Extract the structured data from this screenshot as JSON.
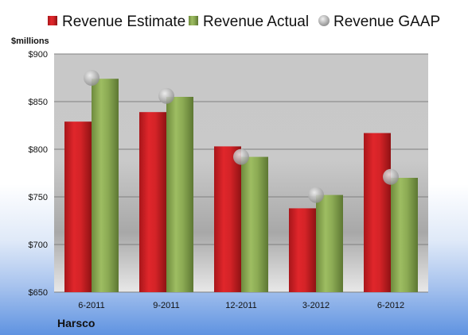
{
  "chart_data": {
    "type": "bar",
    "categories": [
      "6-2011",
      "9-2011",
      "12-2011",
      "3-2012",
      "6-2012"
    ],
    "series": [
      {
        "name": "Revenue Estimate",
        "type": "bar",
        "values": [
          829,
          839,
          803,
          738,
          817
        ],
        "color": "#d42327"
      },
      {
        "name": "Revenue Actual",
        "type": "bar",
        "values": [
          874,
          855,
          792,
          752,
          770
        ],
        "color": "#8cab54"
      },
      {
        "name": "Revenue GAAP",
        "type": "marker",
        "values": [
          875,
          856,
          792,
          752,
          771
        ],
        "color": "#b0b0b0"
      }
    ],
    "ylabel": "$millions",
    "ylim": [
      650,
      900
    ],
    "yticks": [
      650,
      700,
      750,
      800,
      850,
      900
    ],
    "ytick_labels": [
      "$650",
      "$700",
      "$750",
      "$800",
      "$850",
      "$900"
    ],
    "grid": true,
    "legend_position": "top",
    "footer_label": "Harsco"
  }
}
